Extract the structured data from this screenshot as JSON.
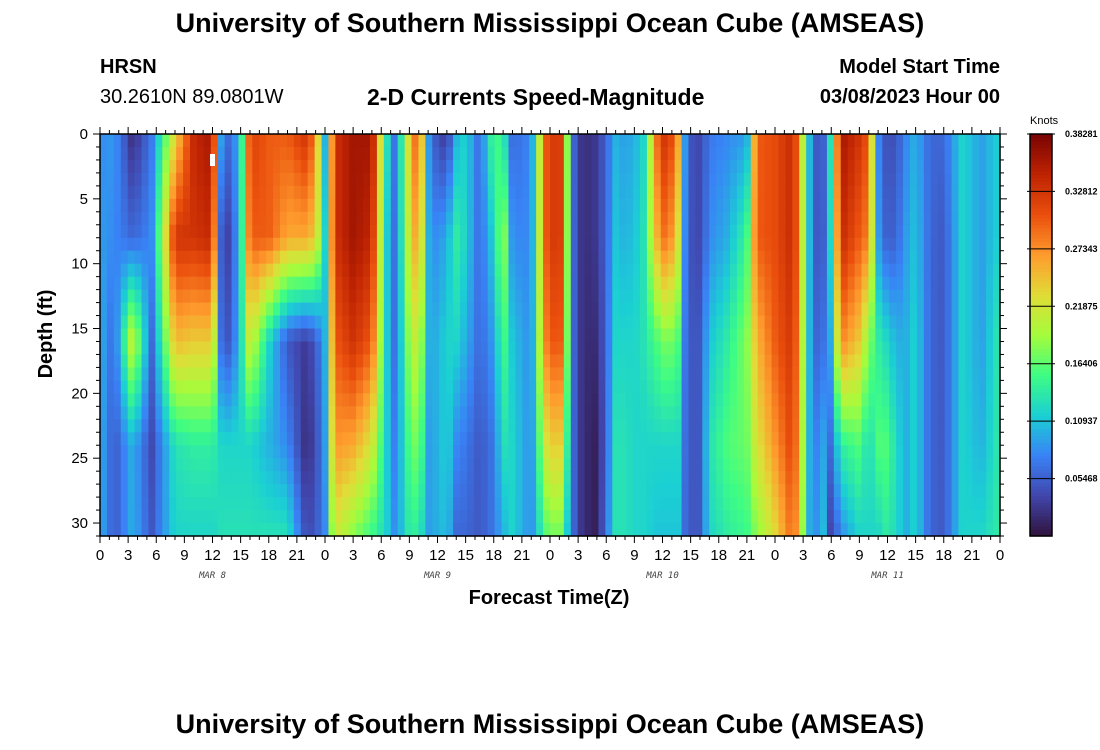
{
  "header": {
    "title": "University of Southern Mississippi Ocean Cube (AMSEAS)",
    "station": "HRSN",
    "coords": "30.2610N  89.0801W",
    "subtitle": "2-D Currents Speed-Magnitude",
    "model_start_label": "Model Start Time",
    "model_start_value": "03/08/2023 Hour 00"
  },
  "footer": {
    "title": "University of Southern Mississippi Ocean Cube (AMSEAS)"
  },
  "chart_data": {
    "type": "heatmap",
    "title": "2-D Currents Speed-Magnitude",
    "xlabel": "Forecast Time(Z)",
    "ylabel": "Depth (ft)",
    "x_range_hours": [
      0,
      96
    ],
    "x_tick_step_hours": 3,
    "x_tick_labels": [
      "0",
      "3",
      "6",
      "9",
      "12",
      "15",
      "18",
      "21",
      "0",
      "3",
      "6",
      "9",
      "12",
      "15",
      "18",
      "21",
      "0",
      "3",
      "6",
      "9",
      "12",
      "15",
      "18",
      "21",
      "0",
      "3",
      "6",
      "9",
      "12",
      "15",
      "18",
      "21",
      "0"
    ],
    "day_labels": [
      {
        "label": "MAR 8",
        "hour": 12
      },
      {
        "label": "MAR 9",
        "hour": 36
      },
      {
        "label": "MAR 10",
        "hour": 60
      },
      {
        "label": "MAR 11",
        "hour": 84
      }
    ],
    "ylim": [
      0,
      31
    ],
    "y_ticks": [
      0,
      5,
      10,
      15,
      20,
      25,
      30
    ],
    "y_tick_labels": [
      "0",
      "5",
      "10",
      "15",
      "20",
      "25",
      "30"
    ],
    "colorbar": {
      "unit": "Knots",
      "min": 0,
      "max": 0.3828,
      "ticks": [
        0.05468,
        0.10937,
        0.16406,
        0.21875,
        0.27343,
        0.32812,
        0.38281
      ],
      "tick_labels": [
        "0.05468",
        "0.10937",
        "0.16406",
        "0.21875",
        "0.27343",
        "0.32812",
        "0.38281"
      ]
    },
    "columns": [
      {
        "h": 0,
        "v": [
          0.08,
          0.09,
          0.1,
          0.1,
          0.1
        ]
      },
      {
        "h": 1.5,
        "v": [
          0.09,
          0.08,
          0.06,
          0.05,
          0.05
        ]
      },
      {
        "h": 3.5,
        "v": [
          0.02,
          0.06,
          0.22,
          0.1,
          0.1
        ]
      },
      {
        "h": 5.5,
        "v": [
          0.07,
          0.08,
          0.06,
          0.04,
          0.05
        ]
      },
      {
        "h": 8,
        "v": [
          0.23,
          0.33,
          0.25,
          0.13,
          0.12
        ]
      },
      {
        "h": 10,
        "v": [
          0.34,
          0.33,
          0.24,
          0.14,
          0.12
        ]
      },
      {
        "h": 12,
        "v": [
          0.36,
          0.34,
          0.24,
          0.14,
          0.12
        ]
      },
      {
        "h": 13,
        "v": [
          0.07,
          0.03,
          0.05,
          0.12,
          0.13
        ]
      },
      {
        "h": 14,
        "v": [
          0.06,
          0.04,
          0.05,
          0.12,
          0.13
        ]
      },
      {
        "h": 15,
        "v": [
          0.12,
          0.12,
          0.12,
          0.12,
          0.13
        ]
      },
      {
        "h": 16,
        "v": [
          0.32,
          0.3,
          0.22,
          0.12,
          0.13
        ]
      },
      {
        "h": 18,
        "v": [
          0.3,
          0.3,
          0.12,
          0.1,
          0.13
        ]
      },
      {
        "h": 20,
        "v": [
          0.3,
          0.26,
          0.05,
          0.08,
          0.13
        ]
      },
      {
        "h": 22,
        "v": [
          0.33,
          0.26,
          0.03,
          0.02,
          0.04
        ]
      },
      {
        "h": 23,
        "v": [
          0.28,
          0.24,
          0.05,
          0.04,
          0.05
        ]
      },
      {
        "h": 24,
        "v": [
          0.1,
          0.12,
          0.1,
          0.09,
          0.08
        ]
      },
      {
        "h": 25,
        "v": [
          0.33,
          0.33,
          0.3,
          0.27,
          0.22
        ]
      },
      {
        "h": 27,
        "v": [
          0.36,
          0.36,
          0.33,
          0.26,
          0.18
        ]
      },
      {
        "h": 29,
        "v": [
          0.36,
          0.34,
          0.3,
          0.22,
          0.15
        ]
      },
      {
        "h": 30.5,
        "v": [
          0.14,
          0.12,
          0.12,
          0.12,
          0.12
        ]
      },
      {
        "h": 31.5,
        "v": [
          0.06,
          0.06,
          0.06,
          0.07,
          0.08
        ]
      },
      {
        "h": 33,
        "v": [
          0.24,
          0.22,
          0.19,
          0.16,
          0.14
        ]
      },
      {
        "h": 34,
        "v": [
          0.32,
          0.28,
          0.22,
          0.18,
          0.14
        ]
      },
      {
        "h": 35,
        "v": [
          0.09,
          0.1,
          0.1,
          0.09,
          0.09
        ]
      },
      {
        "h": 36,
        "v": [
          0.04,
          0.08,
          0.1,
          0.1,
          0.1
        ]
      },
      {
        "h": 37,
        "v": [
          0.03,
          0.1,
          0.12,
          0.12,
          0.11
        ]
      },
      {
        "h": 38,
        "v": [
          0.1,
          0.14,
          0.12,
          0.08,
          0.06
        ]
      },
      {
        "h": 39,
        "v": [
          0.12,
          0.12,
          0.1,
          0.07,
          0.06
        ]
      },
      {
        "h": 40.5,
        "v": [
          0.06,
          0.06,
          0.06,
          0.05,
          0.05
        ]
      },
      {
        "h": 42,
        "v": [
          0.16,
          0.12,
          0.09,
          0.07,
          0.07
        ]
      },
      {
        "h": 43,
        "v": [
          0.14,
          0.2,
          0.16,
          0.13,
          0.1
        ]
      },
      {
        "h": 44,
        "v": [
          0.06,
          0.08,
          0.11,
          0.12,
          0.12
        ]
      },
      {
        "h": 46,
        "v": [
          0.08,
          0.08,
          0.08,
          0.08,
          0.08
        ]
      },
      {
        "h": 47.5,
        "v": [
          0.3,
          0.3,
          0.28,
          0.22,
          0.16
        ]
      },
      {
        "h": 49,
        "v": [
          0.34,
          0.34,
          0.32,
          0.25,
          0.18
        ]
      },
      {
        "h": 50.5,
        "v": [
          0.06,
          0.06,
          0.06,
          0.06,
          0.06
        ]
      },
      {
        "h": 51.5,
        "v": [
          0.02,
          0.02,
          0.02,
          0.02,
          0.02
        ]
      },
      {
        "h": 53,
        "v": [
          0.03,
          0.03,
          0.02,
          0.01,
          0.01
        ]
      },
      {
        "h": 54,
        "v": [
          0.06,
          0.06,
          0.06,
          0.06,
          0.07
        ]
      },
      {
        "h": 55,
        "v": [
          0.1,
          0.11,
          0.12,
          0.13,
          0.13
        ]
      },
      {
        "h": 56,
        "v": [
          0.09,
          0.1,
          0.12,
          0.13,
          0.13
        ]
      },
      {
        "h": 57,
        "v": [
          0.1,
          0.11,
          0.12,
          0.12,
          0.12
        ]
      },
      {
        "h": 58,
        "v": [
          0.12,
          0.13,
          0.13,
          0.12,
          0.12
        ]
      },
      {
        "h": 59.5,
        "v": [
          0.3,
          0.26,
          0.16,
          0.12,
          0.11
        ]
      },
      {
        "h": 60.5,
        "v": [
          0.34,
          0.3,
          0.18,
          0.12,
          0.11
        ]
      },
      {
        "h": 62,
        "v": [
          0.24,
          0.2,
          0.15,
          0.12,
          0.11
        ]
      },
      {
        "h": 62.5,
        "v": [
          0.05,
          0.05,
          0.05,
          0.05,
          0.05
        ]
      },
      {
        "h": 64,
        "v": [
          0.04,
          0.04,
          0.05,
          0.05,
          0.05
        ]
      },
      {
        "h": 65,
        "v": [
          0.07,
          0.08,
          0.11,
          0.13,
          0.12
        ]
      },
      {
        "h": 67,
        "v": [
          0.08,
          0.1,
          0.14,
          0.16,
          0.14
        ]
      },
      {
        "h": 69,
        "v": [
          0.09,
          0.15,
          0.18,
          0.17,
          0.15
        ]
      },
      {
        "h": 70,
        "v": [
          0.3,
          0.3,
          0.25,
          0.22,
          0.18
        ]
      },
      {
        "h": 72,
        "v": [
          0.31,
          0.31,
          0.3,
          0.27,
          0.23
        ]
      },
      {
        "h": 74,
        "v": [
          0.34,
          0.34,
          0.33,
          0.32,
          0.3
        ]
      },
      {
        "h": 76,
        "v": [
          0.06,
          0.06,
          0.06,
          0.06,
          0.06
        ]
      },
      {
        "h": 77,
        "v": [
          0.04,
          0.04,
          0.06,
          0.1,
          0.12
        ]
      },
      {
        "h": 78,
        "v": [
          0.14,
          0.13,
          0.1,
          0.06,
          0.03
        ]
      },
      {
        "h": 79,
        "v": [
          0.36,
          0.34,
          0.28,
          0.14,
          0.08
        ]
      },
      {
        "h": 81,
        "v": [
          0.33,
          0.3,
          0.24,
          0.16,
          0.12
        ]
      },
      {
        "h": 82,
        "v": [
          0.3,
          0.28,
          0.18,
          0.12,
          0.12
        ]
      },
      {
        "h": 83,
        "v": [
          0.08,
          0.09,
          0.14,
          0.16,
          0.12
        ]
      },
      {
        "h": 84,
        "v": [
          0.04,
          0.05,
          0.12,
          0.16,
          0.14
        ]
      },
      {
        "h": 85,
        "v": [
          0.05,
          0.06,
          0.1,
          0.12,
          0.12
        ]
      },
      {
        "h": 86,
        "v": [
          0.08,
          0.09,
          0.1,
          0.1,
          0.1
        ]
      },
      {
        "h": 87,
        "v": [
          0.1,
          0.11,
          0.12,
          0.12,
          0.12
        ]
      },
      {
        "h": 88.5,
        "v": [
          0.06,
          0.06,
          0.06,
          0.06,
          0.06
        ]
      },
      {
        "h": 90,
        "v": [
          0.06,
          0.05,
          0.05,
          0.05,
          0.05
        ]
      },
      {
        "h": 92,
        "v": [
          0.12,
          0.12,
          0.12,
          0.12,
          0.12
        ]
      },
      {
        "h": 94,
        "v": [
          0.09,
          0.09,
          0.09,
          0.1,
          0.12
        ]
      },
      {
        "h": 96,
        "v": [
          0.12,
          0.12,
          0.14,
          0.14,
          0.14
        ]
      }
    ],
    "depth_nodes": [
      0,
      8,
      16,
      24,
      31
    ]
  }
}
